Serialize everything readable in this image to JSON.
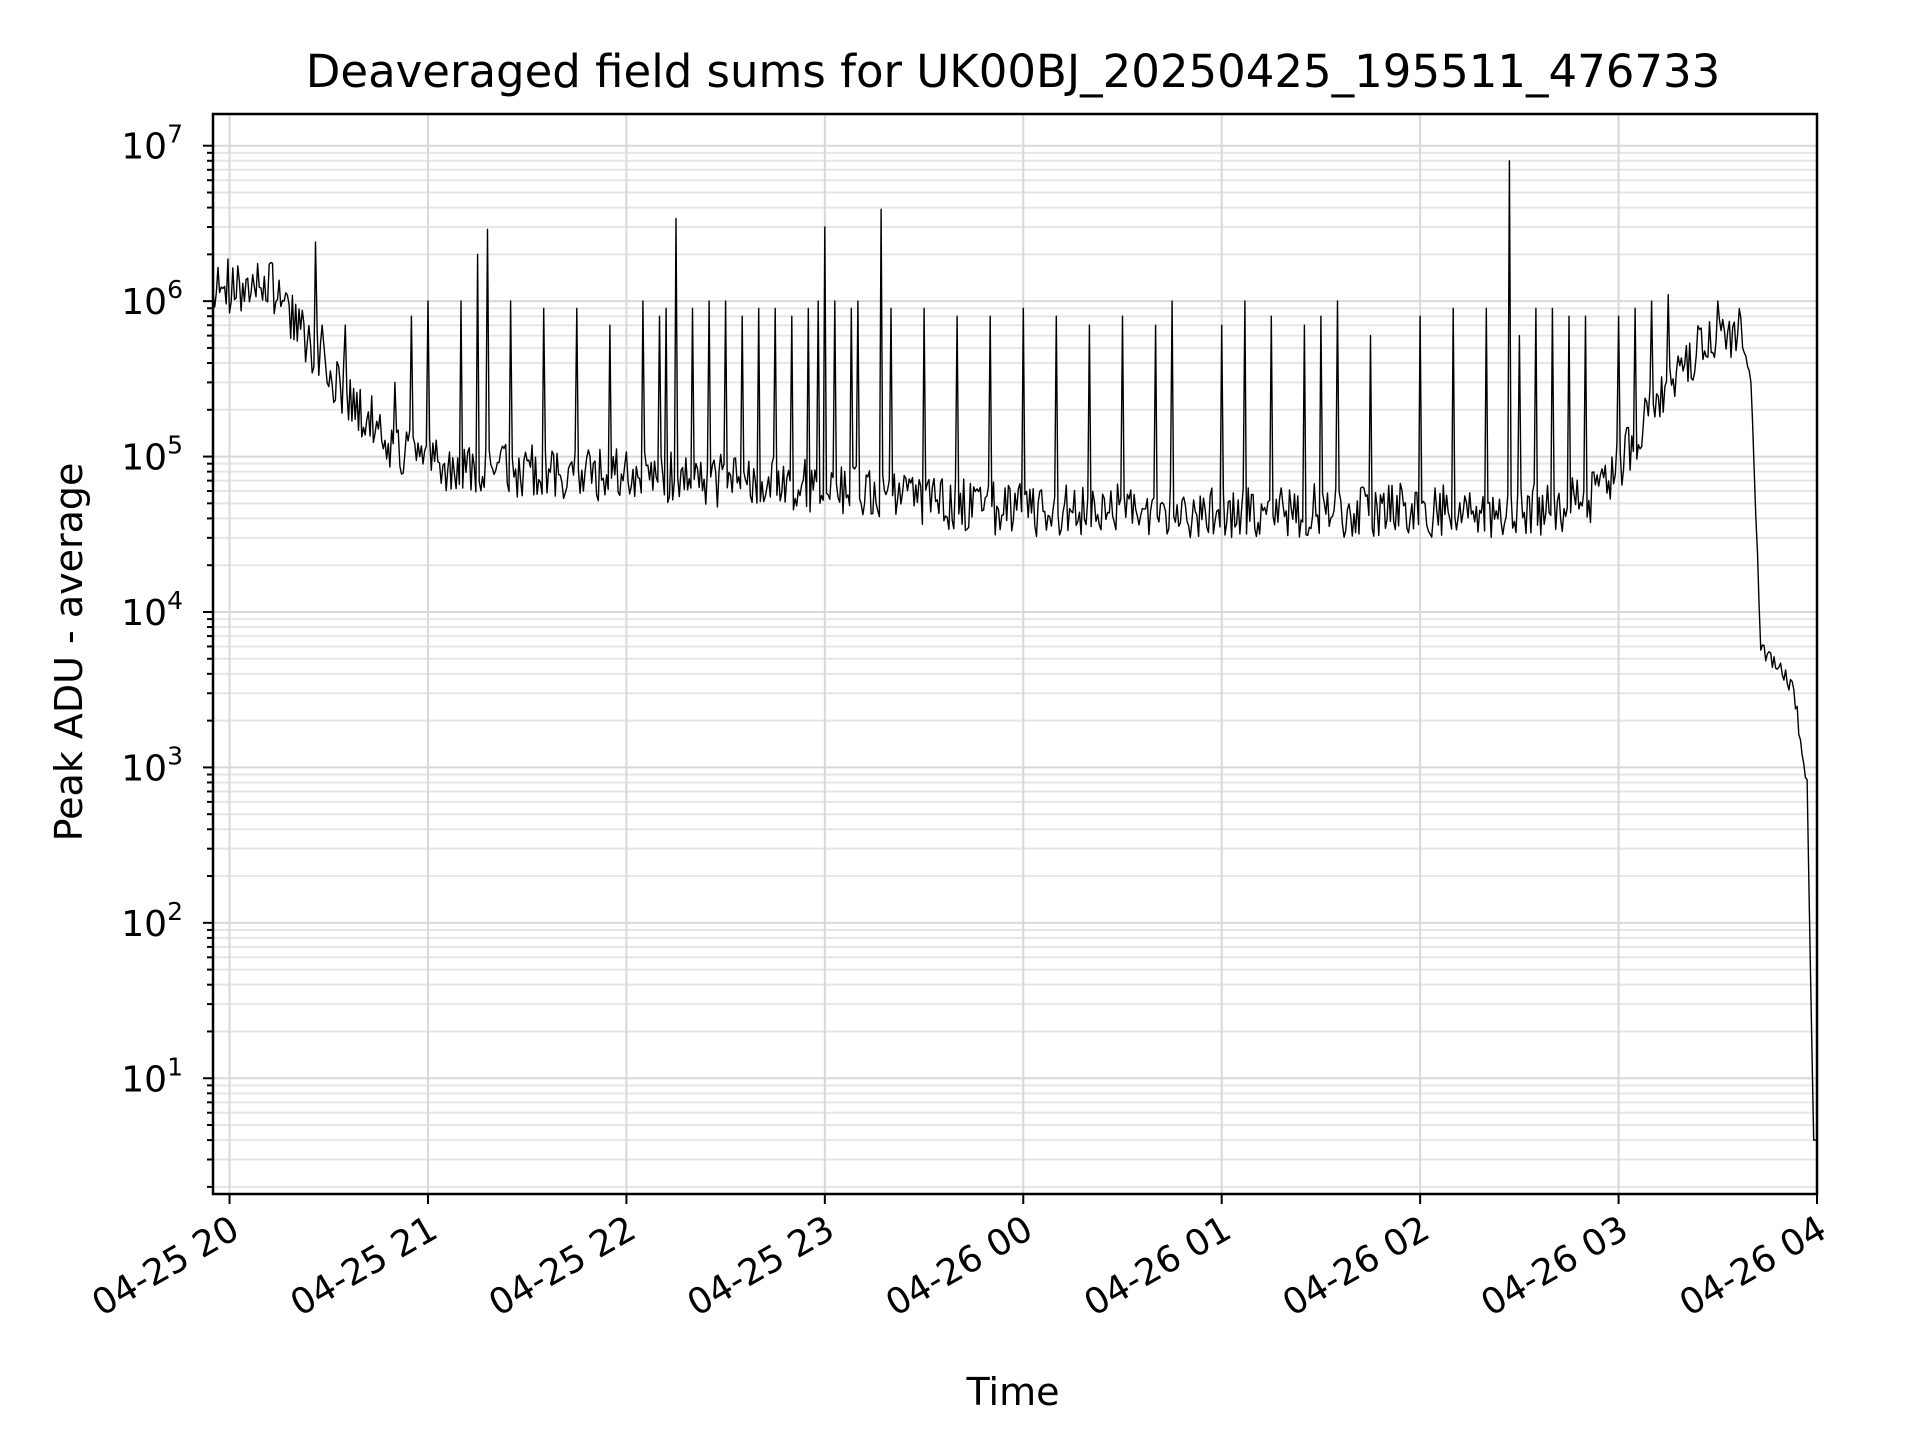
{
  "chart_data": {
    "type": "line",
    "title": "Deaveraged field sums for UK00BJ_20250425_195511_476733",
    "xlabel": "Time",
    "ylabel": "Peak ADU - average",
    "y_scale": "log",
    "grid": "on (major and minor)",
    "legend": "none",
    "xlim": [
      "2025-04-25 19:55",
      "2025-04-26 04:00"
    ],
    "ylim": [
      1.8,
      16000000
    ],
    "x_tick_labels": [
      "04-25 20",
      "04-25 21",
      "04-25 22",
      "04-25 23",
      "04-26 00",
      "04-26 01",
      "04-26 02",
      "04-26 03",
      "04-26 04"
    ],
    "y_tick_labels": [
      {
        "base": "10",
        "exp": "1",
        "value": 10
      },
      {
        "base": "10",
        "exp": "2",
        "value": 100
      },
      {
        "base": "10",
        "exp": "3",
        "value": 1000
      },
      {
        "base": "10",
        "exp": "4",
        "value": 10000
      },
      {
        "base": "10",
        "exp": "5",
        "value": 100000
      },
      {
        "base": "10",
        "exp": "6",
        "value": 1000000
      },
      {
        "base": "10",
        "exp": "7",
        "value": 10000000
      }
    ],
    "series": [
      {
        "color": "#000000",
        "baseline": [
          [
            "2025-04-25 19:55",
            1300000
          ],
          [
            "2025-04-25 20:05",
            1200000
          ],
          [
            "2025-04-25 20:13",
            1200000
          ],
          [
            "2025-04-25 20:20",
            700000
          ],
          [
            "2025-04-25 20:30",
            350000
          ],
          [
            "2025-04-25 20:40",
            200000
          ],
          [
            "2025-04-25 20:50",
            110000
          ],
          [
            "2025-04-25 21:00",
            90000
          ],
          [
            "2025-04-25 21:30",
            80000
          ],
          [
            "2025-04-25 22:00",
            75000
          ],
          [
            "2025-04-25 22:30",
            70000
          ],
          [
            "2025-04-25 23:00",
            65000
          ],
          [
            "2025-04-25 23:30",
            50000
          ],
          [
            "2025-04-26 00:00",
            45000
          ],
          [
            "2025-04-26 00:30",
            45000
          ],
          [
            "2025-04-26 01:00",
            45000
          ],
          [
            "2025-04-26 01:30",
            45000
          ],
          [
            "2025-04-26 02:00",
            45000
          ],
          [
            "2025-04-26 02:30",
            45000
          ],
          [
            "2025-04-26 02:50",
            50000
          ],
          [
            "2025-04-26 03:00",
            90000
          ],
          [
            "2025-04-26 03:10",
            200000
          ],
          [
            "2025-04-26 03:20",
            400000
          ],
          [
            "2025-04-26 03:30",
            650000
          ],
          [
            "2025-04-26 03:37",
            600000
          ],
          [
            "2025-04-26 03:40",
            300000
          ],
          [
            "2025-04-26 03:43",
            6000
          ],
          [
            "2025-04-26 03:50",
            4000
          ],
          [
            "2025-04-26 03:53",
            3000
          ],
          [
            "2025-04-26 03:57",
            800
          ],
          [
            "2025-04-26 03:59",
            4
          ],
          [
            "2025-04-26 04:00",
            4
          ]
        ],
        "spikes": [
          [
            "2025-04-25 20:26",
            2400000
          ],
          [
            "2025-04-25 20:28",
            700000
          ],
          [
            "2025-04-25 20:35",
            700000
          ],
          [
            "2025-04-25 20:50",
            300000
          ],
          [
            "2025-04-25 20:55",
            800000
          ],
          [
            "2025-04-25 21:00",
            1000000
          ],
          [
            "2025-04-25 21:10",
            1000000
          ],
          [
            "2025-04-25 21:15",
            2000000
          ],
          [
            "2025-04-25 21:18",
            2900000
          ],
          [
            "2025-04-25 21:25",
            1000000
          ],
          [
            "2025-04-25 21:35",
            900000
          ],
          [
            "2025-04-25 21:45",
            900000
          ],
          [
            "2025-04-25 21:55",
            700000
          ],
          [
            "2025-04-25 22:05",
            1000000
          ],
          [
            "2025-04-25 22:10",
            800000
          ],
          [
            "2025-04-25 22:12",
            900000
          ],
          [
            "2025-04-25 22:15",
            3400000
          ],
          [
            "2025-04-25 22:20",
            900000
          ],
          [
            "2025-04-25 22:25",
            1000000
          ],
          [
            "2025-04-25 22:30",
            1000000
          ],
          [
            "2025-04-25 22:35",
            800000
          ],
          [
            "2025-04-25 22:40",
            900000
          ],
          [
            "2025-04-25 22:45",
            900000
          ],
          [
            "2025-04-25 22:50",
            800000
          ],
          [
            "2025-04-25 22:55",
            900000
          ],
          [
            "2025-04-25 22:58",
            1000000
          ],
          [
            "2025-04-25 23:00",
            3000000
          ],
          [
            "2025-04-25 23:03",
            1000000
          ],
          [
            "2025-04-25 23:08",
            900000
          ],
          [
            "2025-04-25 23:10",
            1000000
          ],
          [
            "2025-04-25 23:17",
            3900000
          ],
          [
            "2025-04-25 23:20",
            900000
          ],
          [
            "2025-04-25 23:30",
            900000
          ],
          [
            "2025-04-25 23:40",
            800000
          ],
          [
            "2025-04-25 23:50",
            800000
          ],
          [
            "2025-04-26 00:00",
            900000
          ],
          [
            "2025-04-26 00:10",
            800000
          ],
          [
            "2025-04-26 00:20",
            700000
          ],
          [
            "2025-04-26 00:30",
            800000
          ],
          [
            "2025-04-26 00:40",
            700000
          ],
          [
            "2025-04-26 00:45",
            1000000
          ],
          [
            "2025-04-26 01:00",
            700000
          ],
          [
            "2025-04-26 01:07",
            1000000
          ],
          [
            "2025-04-26 01:15",
            800000
          ],
          [
            "2025-04-26 01:25",
            700000
          ],
          [
            "2025-04-26 01:30",
            800000
          ],
          [
            "2025-04-26 01:35",
            1000000
          ],
          [
            "2025-04-26 01:45",
            600000
          ],
          [
            "2025-04-26 02:00",
            800000
          ],
          [
            "2025-04-26 02:10",
            900000
          ],
          [
            "2025-04-26 02:20",
            900000
          ],
          [
            "2025-04-26 02:27",
            8000000
          ],
          [
            "2025-04-26 02:30",
            600000
          ],
          [
            "2025-04-26 02:35",
            900000
          ],
          [
            "2025-04-26 02:40",
            900000
          ],
          [
            "2025-04-26 02:45",
            800000
          ],
          [
            "2025-04-26 02:50",
            800000
          ],
          [
            "2025-04-26 03:00",
            800000
          ],
          [
            "2025-04-26 03:05",
            900000
          ],
          [
            "2025-04-26 03:10",
            1000000
          ],
          [
            "2025-04-26 03:15",
            1100000
          ],
          [
            "2025-04-26 03:30",
            1000000
          ]
        ]
      }
    ]
  }
}
